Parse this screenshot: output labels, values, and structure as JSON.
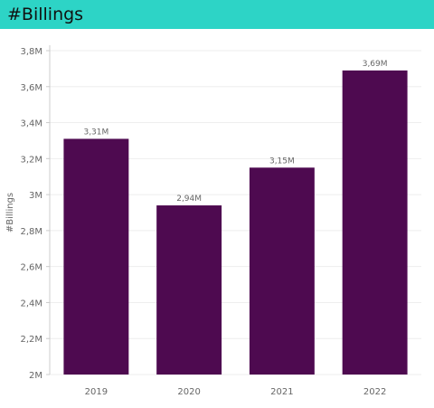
{
  "header": {
    "title": "#Billings"
  },
  "chart_data": {
    "type": "bar",
    "title": "",
    "xlabel": "",
    "ylabel": "#Billings",
    "categories": [
      "2019",
      "2020",
      "2021",
      "2022"
    ],
    "values": [
      3.31,
      2.94,
      3.15,
      3.69
    ],
    "value_labels": [
      "3,31M",
      "2,94M",
      "3,15M",
      "3,69M"
    ],
    "ylim": [
      2,
      3.8
    ],
    "yticks": [
      2,
      2.2,
      2.4,
      2.6,
      2.8,
      3,
      3.2,
      3.4,
      3.6,
      3.8
    ],
    "ytick_labels": [
      "2M",
      "2,2M",
      "2,4M",
      "2,6M",
      "2,8M",
      "3M",
      "3,2M",
      "3,4M",
      "3,6M",
      "3,8M"
    ],
    "grid": true,
    "colors": {
      "bar": "#4e0a50",
      "grid": "#eeeeee",
      "axis": "#cccccc",
      "tick_text": "#666666",
      "label_text": "#666666"
    }
  }
}
